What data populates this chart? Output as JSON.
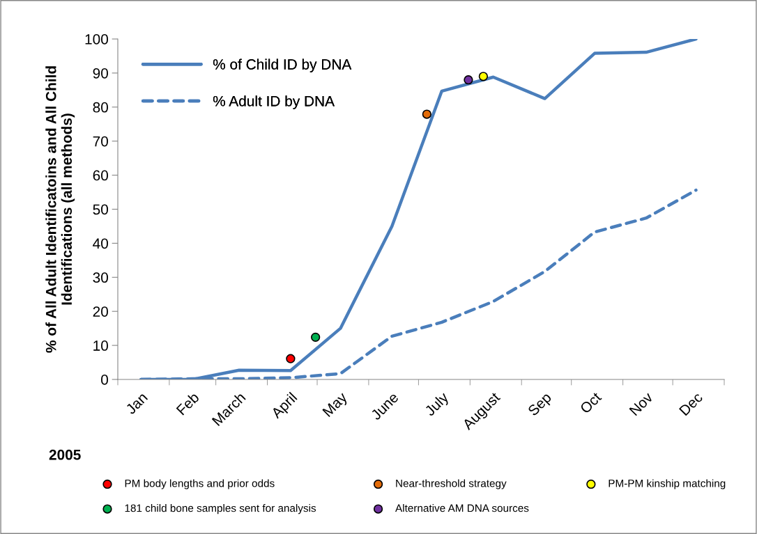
{
  "chart_data": {
    "type": "line",
    "ylabel": "% of All Adult Identificatoins and All Child\nIdentifications (all methods)",
    "x": [
      "2005-01-15",
      "2005-02-15",
      "2005-03-15",
      "2005-04-15",
      "2005-05-15",
      "2005-06-15",
      "2005-07-15",
      "2005-08-15",
      "2005-09-15",
      "2005-10-15",
      "2005-11-15",
      "2005-12-15"
    ],
    "xlim": [
      "2005-01-01",
      "2006-01-01"
    ],
    "xticks": [
      {
        "value": "2005-01-15",
        "label": "Jan"
      },
      {
        "value": "2005-02-15",
        "label": "Feb"
      },
      {
        "value": "2005-03-15",
        "label": "March"
      },
      {
        "value": "2005-04-15",
        "label": "April"
      },
      {
        "value": "2005-05-15",
        "label": "May"
      },
      {
        "value": "2005-06-15",
        "label": "June"
      },
      {
        "value": "2005-07-15",
        "label": "July"
      },
      {
        "value": "2005-08-15",
        "label": "August"
      },
      {
        "value": "2005-09-15",
        "label": "Sep"
      },
      {
        "value": "2005-10-15",
        "label": "Oct"
      },
      {
        "value": "2005-11-15",
        "label": "Nov"
      },
      {
        "value": "2005-12-15",
        "label": "Dec"
      },
      {
        "value": "2005-01-01",
        "label": null
      },
      {
        "value": "2005-02-01",
        "label": null
      },
      {
        "value": "2005-03-01",
        "label": null
      },
      {
        "value": "2005-04-01",
        "label": null
      },
      {
        "value": "2005-05-01",
        "label": null
      },
      {
        "value": "2005-06-01",
        "label": null
      },
      {
        "value": "2005-07-01",
        "label": null
      },
      {
        "value": "2005-08-01",
        "label": null
      },
      {
        "value": "2005-09-01",
        "label": null
      },
      {
        "value": "2005-10-01",
        "label": null
      },
      {
        "value": "2005-11-01",
        "label": null
      },
      {
        "value": "2005-12-01",
        "label": null
      },
      {
        "value": "2006-01-01",
        "label": null
      }
    ],
    "ylim": [
      0,
      100
    ],
    "yticks": [
      0,
      10,
      20,
      30,
      40,
      50,
      60,
      70,
      80,
      90,
      100
    ],
    "grid": false,
    "legend": "bottom left",
    "marker": "none",
    "series": [
      {
        "name": "% of Child ID by DNA",
        "color": "#4a7ebb",
        "line_style": "solid",
        "values": [
          0,
          0,
          2.7,
          2.6,
          15.0,
          45,
          84.7,
          88.8,
          82.5,
          95.8,
          96.1,
          100
        ]
      },
      {
        "name": "% Adult ID by DNA",
        "color": "#4a7ebb",
        "line_style": "dashed",
        "values": [
          0,
          0.2,
          0.2,
          0.5,
          1.7,
          12.7,
          16.8,
          22.9,
          31.7,
          43.3,
          47.4,
          55.6
        ]
      },
      {
        "name": "PM body lengths and prior odds",
        "type": "scatter",
        "marker": "circle",
        "color": "#ff0000",
        "x": [
          "2005-04-15"
        ],
        "values": [
          6.1
        ]
      },
      {
        "name": "181 child bone samples sent for analysis",
        "type": "scatter",
        "marker": "circle",
        "color": "#00b050",
        "x": [
          "2005-04-30"
        ],
        "values": [
          12.4
        ]
      },
      {
        "name": "Near-threshold strategy",
        "type": "scatter",
        "marker": "circle",
        "color": "#e36c09",
        "x": [
          "2005-07-06"
        ],
        "values": [
          77.9
        ]
      },
      {
        "name": "Alternative AM DNA sources",
        "type": "scatter",
        "marker": "circle",
        "color": "#7030a0",
        "x": [
          "2005-07-31"
        ],
        "values": [
          88.0
        ]
      },
      {
        "name": "PM-PM kinship matching",
        "type": "scatter",
        "marker": "circle",
        "color": "#ffff00",
        "x": [
          "2005-08-09"
        ],
        "values": [
          89.0
        ]
      }
    ],
    "annotations": [
      "2005"
    ]
  }
}
